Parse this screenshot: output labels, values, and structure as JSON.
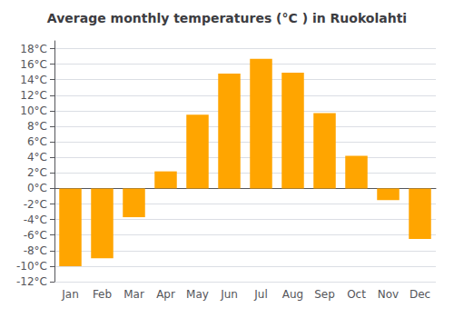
{
  "chart_data": {
    "type": "bar",
    "title": "Average monthly temperatures (°C ) in Ruokolahti",
    "categories": [
      "Jan",
      "Feb",
      "Mar",
      "Apr",
      "May",
      "Jun",
      "Jul",
      "Aug",
      "Sep",
      "Oct",
      "Nov",
      "Dec"
    ],
    "values": [
      -10.0,
      -9.0,
      -3.7,
      2.2,
      9.5,
      14.8,
      16.7,
      14.9,
      9.7,
      4.2,
      -1.5,
      -6.5
    ],
    "color": "#FFA500",
    "ylim": [
      -12,
      19
    ],
    "yticks": [
      {
        "value": -12,
        "label": "-12°C"
      },
      {
        "value": -10,
        "label": "-10°C"
      },
      {
        "value": -8,
        "label": "-8°C"
      },
      {
        "value": -6,
        "label": "-6°C"
      },
      {
        "value": -4,
        "label": "-4°C"
      },
      {
        "value": -2,
        "label": "-2°C"
      },
      {
        "value": 0,
        "label": "0°C"
      },
      {
        "value": 2,
        "label": "2°C"
      },
      {
        "value": 4,
        "label": "4°C"
      },
      {
        "value": 6,
        "label": "6°C"
      },
      {
        "value": 8,
        "label": "8°C"
      },
      {
        "value": 10,
        "label": "10°C"
      },
      {
        "value": 12,
        "label": "12°C"
      },
      {
        "value": 14,
        "label": "14°C"
      },
      {
        "value": 16,
        "label": "16°C"
      },
      {
        "value": 18,
        "label": "18°C"
      }
    ],
    "grid": true
  }
}
